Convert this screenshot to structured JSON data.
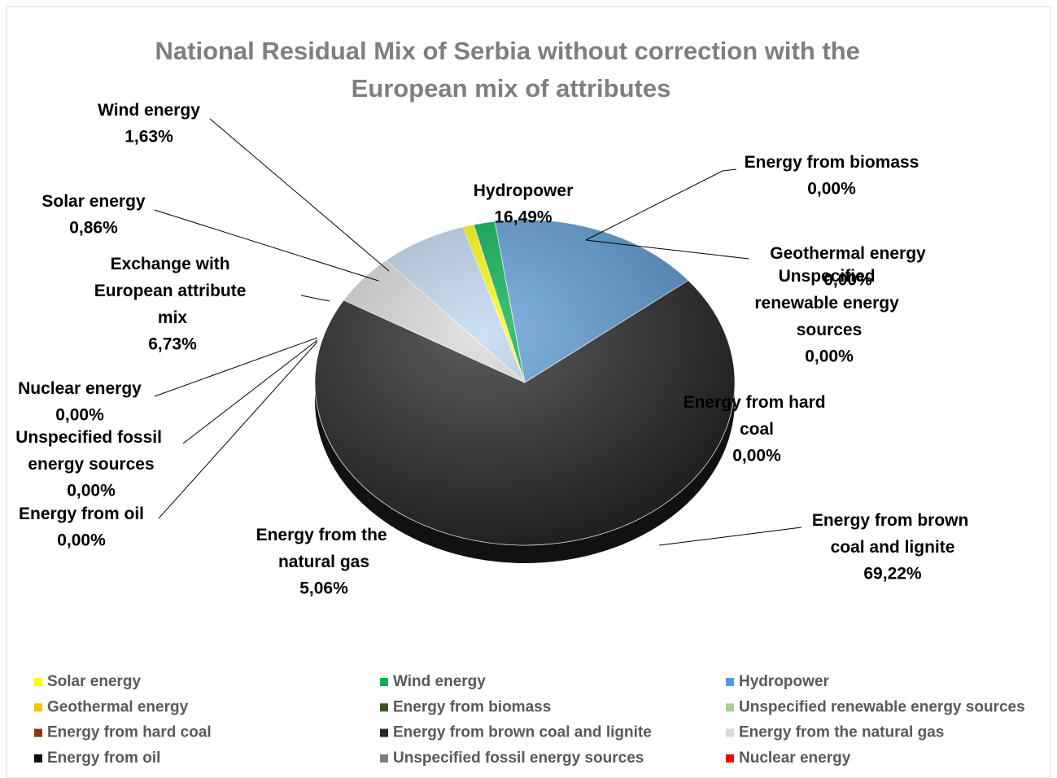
{
  "chart_data": {
    "type": "pie",
    "title": "National Residual Mix of Serbia without correction with the European mix of attributes",
    "categories": [
      "Solar energy",
      "Wind energy",
      "Hydropower",
      "Geothermal energy",
      "Energy from biomass",
      "Unspecified renewable energy sources",
      "Energy from hard coal",
      "Energy from brown coal and lignite",
      "Energy from the natural gas",
      "Energy from oil",
      "Unspecified fossil energy sources",
      "Nuclear energy",
      "Exchange with European attribute mix"
    ],
    "values": [
      0.86,
      1.63,
      16.49,
      0,
      0,
      0,
      0,
      69.22,
      5.06,
      0,
      0,
      0,
      6.73
    ],
    "value_labels": [
      "0,86%",
      "1,63%",
      "16,49%",
      "0,00%",
      "0,00%",
      "0,00%",
      "0,00%",
      "69,22%",
      "5,06%",
      "0,00%",
      "0,00%",
      "0,00%",
      "6,73%"
    ],
    "colors": [
      "#ffff00",
      "#00b050",
      "#5b9bd5",
      "#ffc000",
      "#375623",
      "#a9d18e",
      "#843c0c",
      "#262626",
      "#d9d9d9",
      "#0d0d0d",
      "#7f7f7f",
      "#ff0000",
      "#bdd7ee"
    ],
    "show_in_legend": [
      true,
      true,
      true,
      true,
      true,
      true,
      true,
      true,
      true,
      true,
      true,
      true,
      false
    ],
    "legend": "bottom"
  }
}
